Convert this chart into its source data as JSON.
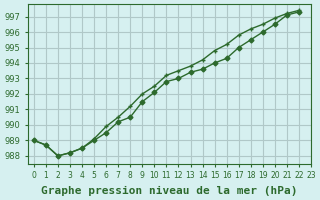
{
  "xlabel": "Graphe pression niveau de la mer (hPa)",
  "background_color": "#d6f0f0",
  "grid_color": "#b0c8c8",
  "line_color": "#2d6a2d",
  "series1": [
    989.0,
    988.7,
    988.0,
    988.2,
    988.5,
    989.0,
    989.5,
    990.2,
    990.5,
    991.5,
    992.1,
    992.8,
    993.0,
    993.4,
    993.6,
    994.0,
    994.3,
    995.0,
    995.5,
    996.0,
    996.5,
    997.1,
    997.3
  ],
  "series2": [
    989.0,
    988.7,
    988.0,
    988.2,
    988.5,
    989.1,
    989.9,
    990.5,
    991.2,
    992.0,
    992.5,
    993.2,
    993.5,
    993.8,
    994.2,
    994.8,
    995.2,
    995.8,
    996.2,
    996.5,
    996.9,
    997.2,
    997.4
  ],
  "x": [
    0,
    1,
    2,
    3,
    4,
    5,
    6,
    7,
    8,
    9,
    10,
    11,
    12,
    13,
    14,
    15,
    16,
    17,
    18,
    19,
    20,
    21,
    22
  ],
  "ylim": [
    987.5,
    997.8
  ],
  "yticks": [
    988,
    989,
    990,
    991,
    992,
    993,
    994,
    995,
    996,
    997
  ],
  "xtick_labels": [
    "0",
    "1",
    "2",
    "3",
    "4",
    "5",
    "6",
    "7",
    "8",
    "9",
    "10",
    "11",
    "12",
    "13",
    "14",
    "15",
    "16",
    "17",
    "18",
    "19",
    "20",
    "21",
    "22",
    "23"
  ],
  "xlabel_fontsize": 8,
  "tick_fontsize": 6
}
